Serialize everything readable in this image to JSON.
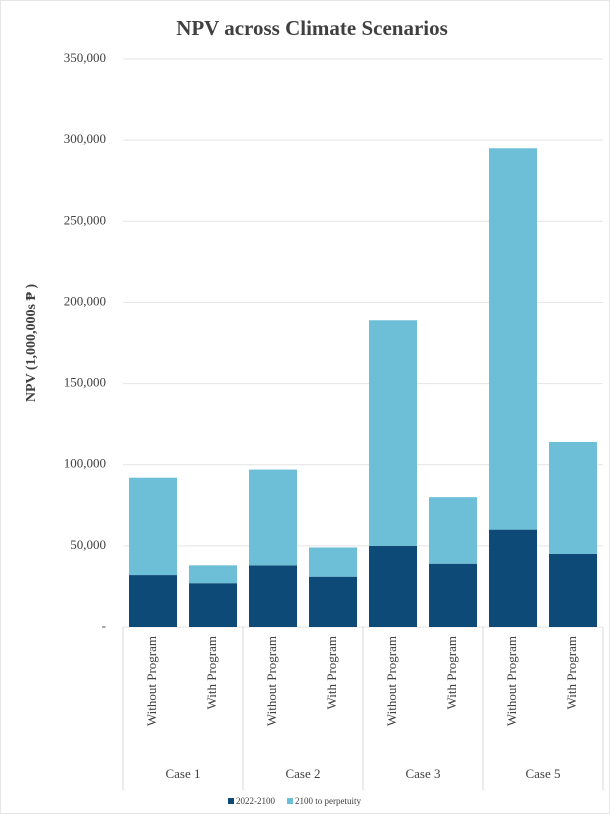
{
  "chart_data": {
    "type": "stacked_bar",
    "title": "NPV across Climate Scenarios",
    "y_label": "NPV (1,000,000s ₱ )",
    "categories": [
      "Without Program",
      "With Program",
      "Without Program",
      "With Program",
      "Without Program",
      "With Program",
      "Without Program",
      "With Program"
    ],
    "groups": [
      "Case 1",
      "Case 2",
      "Case 3",
      "Case 5"
    ],
    "series": [
      {
        "name": "2022-2100",
        "color": "#0e4a78",
        "values": [
          32000,
          27000,
          38000,
          31000,
          50000,
          39000,
          60000,
          45000
        ]
      },
      {
        "name": "2100 to perpetuity",
        "color": "#6cbfd6",
        "values": [
          60000,
          11000,
          59000,
          18000,
          139000,
          41000,
          235000,
          69000
        ]
      }
    ],
    "ylim": [
      0,
      350000
    ],
    "yticks": [
      {
        "value": 0,
        "label": "-"
      },
      {
        "value": 50000,
        "label": "50,000"
      },
      {
        "value": 100000,
        "label": "100,000"
      },
      {
        "value": 150000,
        "label": "150,000"
      },
      {
        "value": 200000,
        "label": "200,000"
      },
      {
        "value": 250000,
        "label": "250,000"
      },
      {
        "value": 300000,
        "label": "300,000"
      },
      {
        "value": 350000,
        "label": "350,000"
      }
    ],
    "grid": true,
    "legend": "bottom"
  }
}
